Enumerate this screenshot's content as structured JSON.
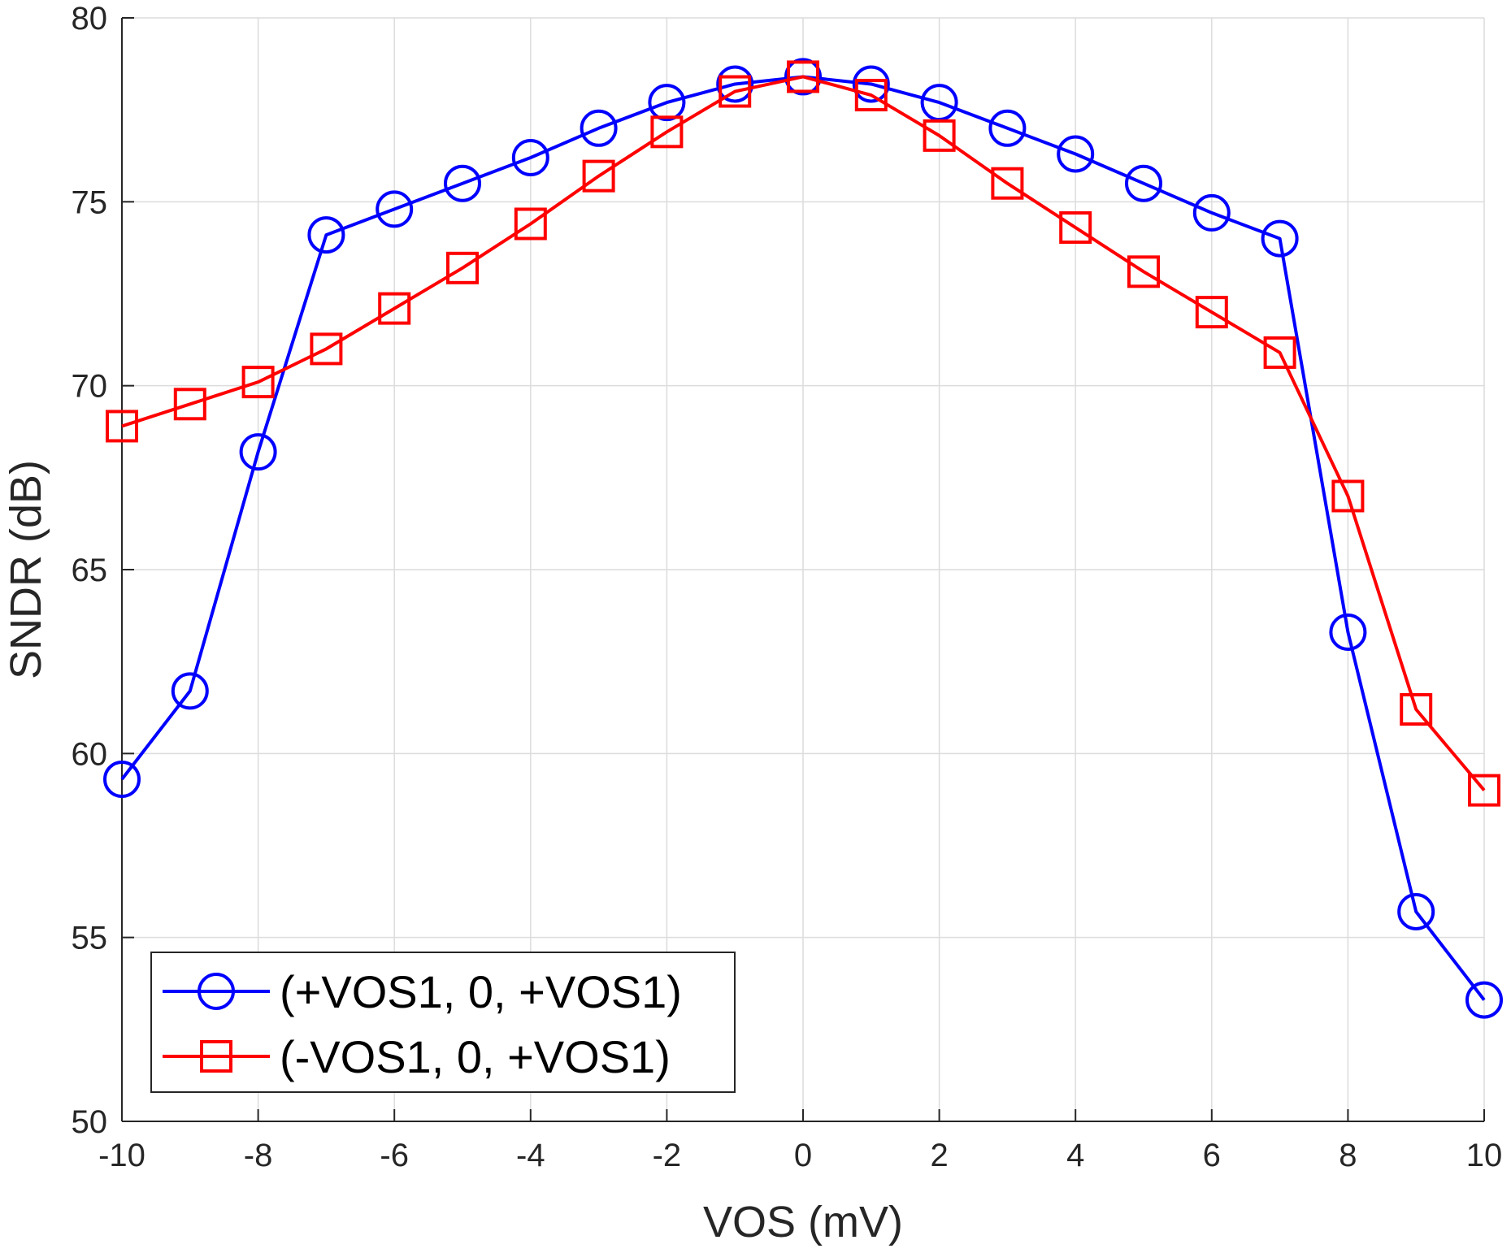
{
  "chart_data": {
    "type": "line",
    "title": "",
    "xlabel": "VOS (mV)",
    "ylabel": "SNDR (dB)",
    "xlim": [
      -10,
      10
    ],
    "ylim": [
      50,
      80
    ],
    "xticks": [
      -10,
      -8,
      -6,
      -4,
      -2,
      0,
      2,
      4,
      6,
      8,
      10
    ],
    "yticks": [
      50,
      55,
      60,
      65,
      70,
      75,
      80
    ],
    "xtick_labels": [
      "-10",
      "-8",
      "-6",
      "-4",
      "-2",
      "0",
      "2",
      "4",
      "6",
      "8",
      "10"
    ],
    "ytick_labels": [
      "50",
      "55",
      "60",
      "65",
      "70",
      "75",
      "80"
    ],
    "grid": true,
    "legend_position": "bottom-left",
    "x": [
      -10,
      -9,
      -8,
      -7,
      -6,
      -5,
      -4,
      -3,
      -2,
      -1,
      0,
      1,
      2,
      3,
      4,
      5,
      6,
      7,
      8,
      9,
      10
    ],
    "series": [
      {
        "name": "(+VOS1, 0, +VOS1)",
        "color": "#0000ff",
        "marker": "circle",
        "values": [
          59.3,
          61.7,
          68.2,
          74.1,
          74.8,
          75.5,
          76.2,
          77.0,
          77.7,
          78.2,
          78.4,
          78.2,
          77.7,
          77.0,
          76.3,
          75.5,
          74.7,
          74.0,
          63.3,
          55.7,
          53.3
        ]
      },
      {
        "name": "(-VOS1, 0, +VOS1)",
        "color": "#ff0000",
        "marker": "square",
        "values": [
          68.9,
          69.5,
          70.1,
          71.0,
          72.1,
          73.2,
          74.4,
          75.7,
          76.9,
          78.0,
          78.4,
          77.9,
          76.8,
          75.5,
          74.3,
          73.1,
          72.0,
          70.9,
          67.0,
          61.2,
          59.0
        ]
      }
    ]
  }
}
